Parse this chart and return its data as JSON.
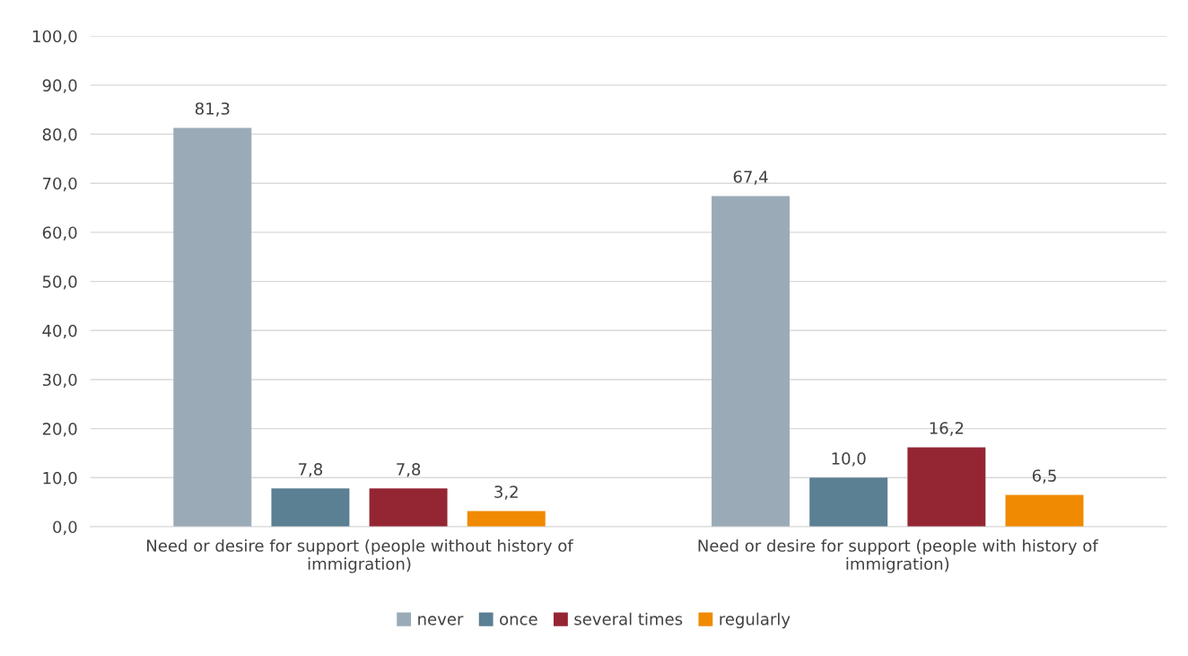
{
  "chart_data": {
    "type": "bar",
    "categories": [
      "Need or desire for support (people without history of\nimmigration)",
      "Need or desire for support (people with history of\nimmigration)"
    ],
    "series": [
      {
        "name": "never",
        "color": "#9aabb7",
        "values": [
          81.3,
          67.4
        ],
        "value_labels": [
          "81,3",
          "67,4"
        ]
      },
      {
        "name": "once",
        "color": "#5b7f93",
        "values": [
          7.8,
          10.0
        ],
        "value_labels": [
          "7,8",
          "10,0"
        ]
      },
      {
        "name": "several times",
        "color": "#942634",
        "values": [
          7.8,
          16.2
        ],
        "value_labels": [
          "7,8",
          "16,2"
        ]
      },
      {
        "name": "regularly",
        "color": "#f08a00",
        "values": [
          3.2,
          6.5
        ],
        "value_labels": [
          "3,2",
          "6,5"
        ]
      }
    ],
    "ylim": [
      0,
      100
    ],
    "yticks": [
      {
        "value": 0,
        "label": "0,0"
      },
      {
        "value": 10,
        "label": "10,0"
      },
      {
        "value": 20,
        "label": "20,0"
      },
      {
        "value": 30,
        "label": "30,0"
      },
      {
        "value": 40,
        "label": "40,0"
      },
      {
        "value": 50,
        "label": "50,0"
      },
      {
        "value": 60,
        "label": "60,0"
      },
      {
        "value": 70,
        "label": "70,0"
      },
      {
        "value": 80,
        "label": "80,0"
      },
      {
        "value": 90,
        "label": "90,0"
      },
      {
        "value": 100,
        "label": "100,0"
      }
    ],
    "grid": "y",
    "legend": "bottom"
  }
}
